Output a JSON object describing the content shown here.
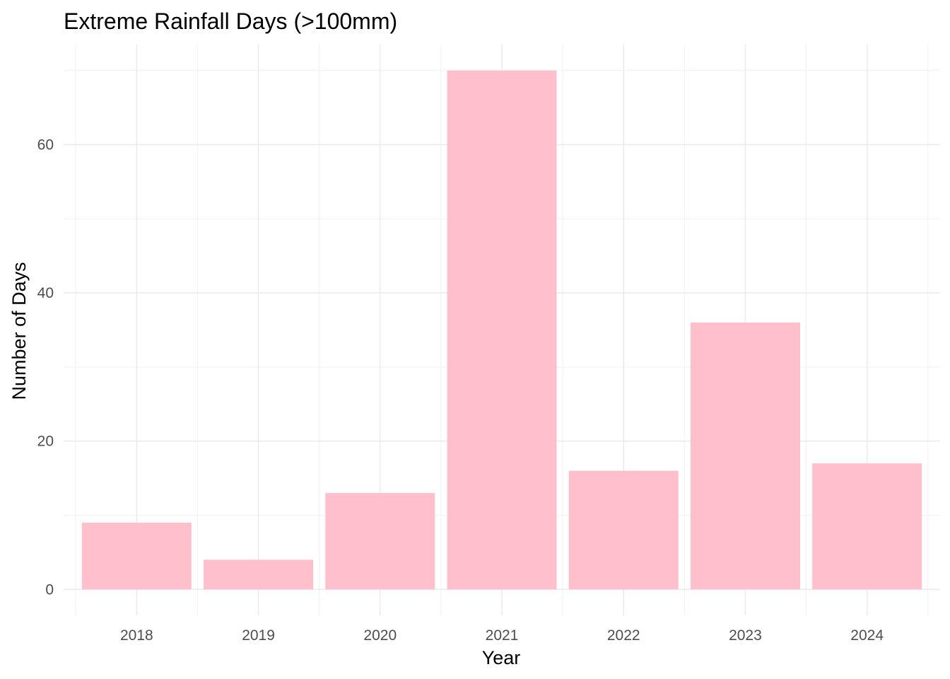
{
  "chart_data": {
    "type": "bar",
    "title": "Extreme Rainfall Days (>100mm)",
    "xlabel": "Year",
    "ylabel": "Number of Days",
    "categories": [
      "2018",
      "2019",
      "2020",
      "2021",
      "2022",
      "2023",
      "2024"
    ],
    "values": [
      9,
      4,
      13,
      70,
      16,
      36,
      17
    ],
    "y_ticks": [
      0,
      20,
      40,
      60
    ],
    "y_minor_ticks": [
      10,
      30,
      50,
      70
    ],
    "ylim": [
      -3.5,
      73.5
    ],
    "bar_color": "#FFC0CB",
    "grid": true
  }
}
